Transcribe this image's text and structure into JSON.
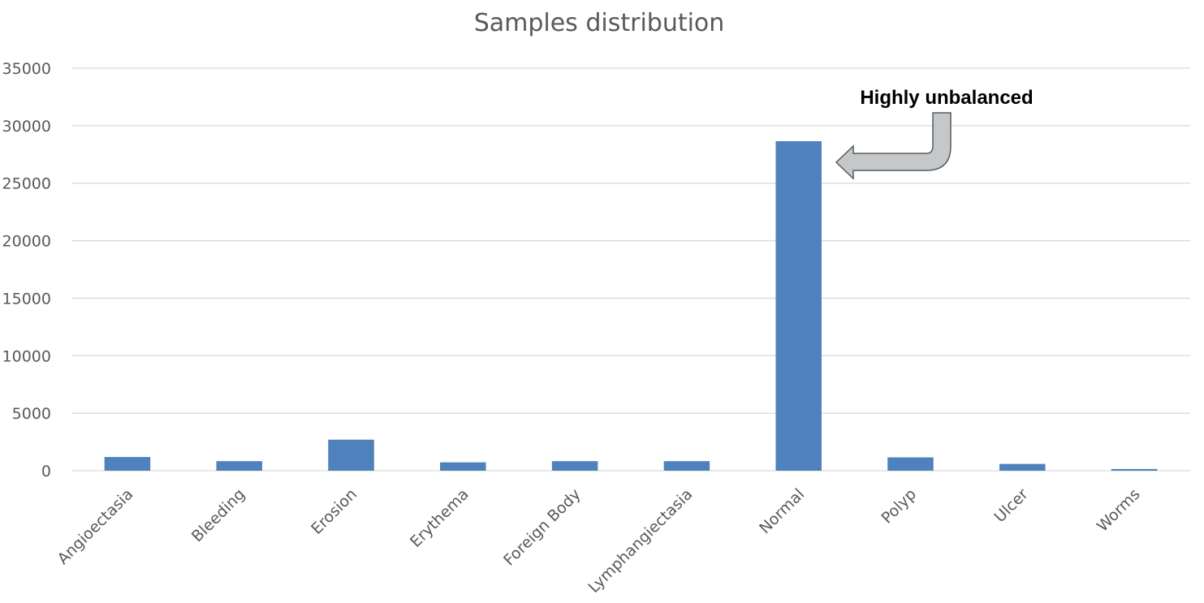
{
  "chart_data": {
    "type": "bar",
    "title": "Samples distribution",
    "xlabel": "",
    "ylabel": "",
    "categories": [
      "Angioectasia",
      "Bleeding",
      "Erosion",
      "Erythema",
      "Foreign Body",
      "Lymphangiectasia",
      "Normal",
      "Polyp",
      "Ulcer",
      "Worms"
    ],
    "values": [
      1190,
      830,
      2700,
      730,
      830,
      830,
      28650,
      1160,
      590,
      150
    ],
    "ylim": [
      0,
      35000
    ],
    "yticks": [
      "0",
      "5000",
      "10000",
      "15000",
      "20000",
      "25000",
      "30000",
      "35000"
    ],
    "grid": true,
    "legend": "none",
    "bar_color": "#4f81bd",
    "annotation": {
      "text": "Highly unbalanced",
      "target": "Normal",
      "arrow_color": "#c4c8ca"
    }
  }
}
